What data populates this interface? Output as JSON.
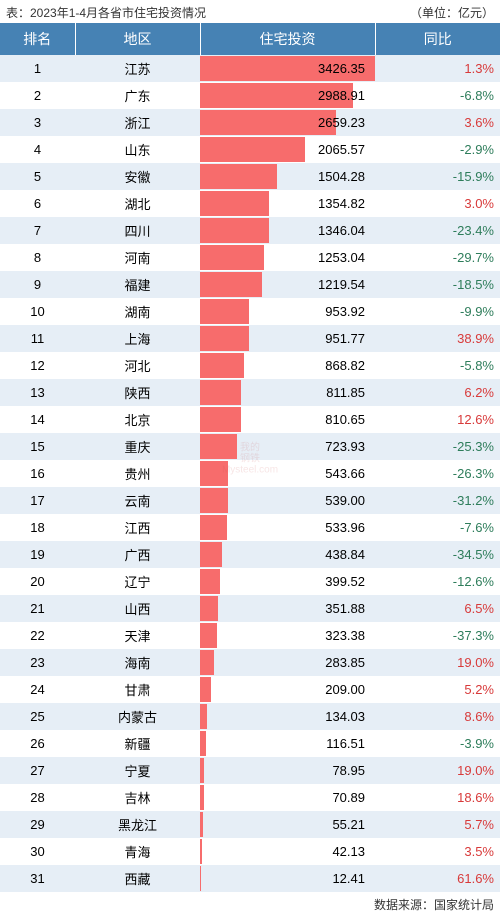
{
  "title_left": "表：2023年1-4月各省市住宅投资情况",
  "title_right": "（单位：亿元）",
  "footer": "数据来源：国家统计局",
  "watermark": "我的\n钢铁\nMysteel.com",
  "header_bg": "#4682b4",
  "header_fg": "#ffffff",
  "row_odd_bg": "#e6eef6",
  "row_even_bg": "#ffffff",
  "bar_color": "#f76c6c",
  "pos_color": "#d83a3a",
  "neg_color": "#2e7d5b",
  "text_color": "#000000",
  "columns": {
    "rank": "排名",
    "region": "地区",
    "invest": "住宅投资",
    "yoy": "同比"
  },
  "max_value": 3426.35,
  "rows": [
    {
      "rank": 1,
      "region": "江苏",
      "invest": 3426.35,
      "yoy": 1.3
    },
    {
      "rank": 2,
      "region": "广东",
      "invest": 2988.91,
      "yoy": -6.8
    },
    {
      "rank": 3,
      "region": "浙江",
      "invest": 2659.23,
      "yoy": 3.6
    },
    {
      "rank": 4,
      "region": "山东",
      "invest": 2065.57,
      "yoy": -2.9
    },
    {
      "rank": 5,
      "region": "安徽",
      "invest": 1504.28,
      "yoy": -15.9
    },
    {
      "rank": 6,
      "region": "湖北",
      "invest": 1354.82,
      "yoy": 3.0
    },
    {
      "rank": 7,
      "region": "四川",
      "invest": 1346.04,
      "yoy": -23.4
    },
    {
      "rank": 8,
      "region": "河南",
      "invest": 1253.04,
      "yoy": -29.7
    },
    {
      "rank": 9,
      "region": "福建",
      "invest": 1219.54,
      "yoy": -18.5
    },
    {
      "rank": 10,
      "region": "湖南",
      "invest": 953.92,
      "yoy": -9.9
    },
    {
      "rank": 11,
      "region": "上海",
      "invest": 951.77,
      "yoy": 38.9
    },
    {
      "rank": 12,
      "region": "河北",
      "invest": 868.82,
      "yoy": -5.8
    },
    {
      "rank": 13,
      "region": "陕西",
      "invest": 811.85,
      "yoy": 6.2
    },
    {
      "rank": 14,
      "region": "北京",
      "invest": 810.65,
      "yoy": 12.6
    },
    {
      "rank": 15,
      "region": "重庆",
      "invest": 723.93,
      "yoy": -25.3
    },
    {
      "rank": 16,
      "region": "贵州",
      "invest": 543.66,
      "yoy": -26.3
    },
    {
      "rank": 17,
      "region": "云南",
      "invest": 539.0,
      "yoy": -31.2
    },
    {
      "rank": 18,
      "region": "江西",
      "invest": 533.96,
      "yoy": -7.6
    },
    {
      "rank": 19,
      "region": "广西",
      "invest": 438.84,
      "yoy": -34.5
    },
    {
      "rank": 20,
      "region": "辽宁",
      "invest": 399.52,
      "yoy": -12.6
    },
    {
      "rank": 21,
      "region": "山西",
      "invest": 351.88,
      "yoy": 6.5
    },
    {
      "rank": 22,
      "region": "天津",
      "invest": 323.38,
      "yoy": -37.3
    },
    {
      "rank": 23,
      "region": "海南",
      "invest": 283.85,
      "yoy": 19.0
    },
    {
      "rank": 24,
      "region": "甘肃",
      "invest": 209.0,
      "yoy": 5.2
    },
    {
      "rank": 25,
      "region": "内蒙古",
      "invest": 134.03,
      "yoy": 8.6
    },
    {
      "rank": 26,
      "region": "新疆",
      "invest": 116.51,
      "yoy": -3.9
    },
    {
      "rank": 27,
      "region": "宁夏",
      "invest": 78.95,
      "yoy": 19.0
    },
    {
      "rank": 28,
      "region": "吉林",
      "invest": 70.89,
      "yoy": 18.6
    },
    {
      "rank": 29,
      "region": "黑龙江",
      "invest": 55.21,
      "yoy": 5.7
    },
    {
      "rank": 30,
      "region": "青海",
      "invest": 42.13,
      "yoy": 3.5
    },
    {
      "rank": 31,
      "region": "西藏",
      "invest": 12.41,
      "yoy": 61.6
    }
  ]
}
